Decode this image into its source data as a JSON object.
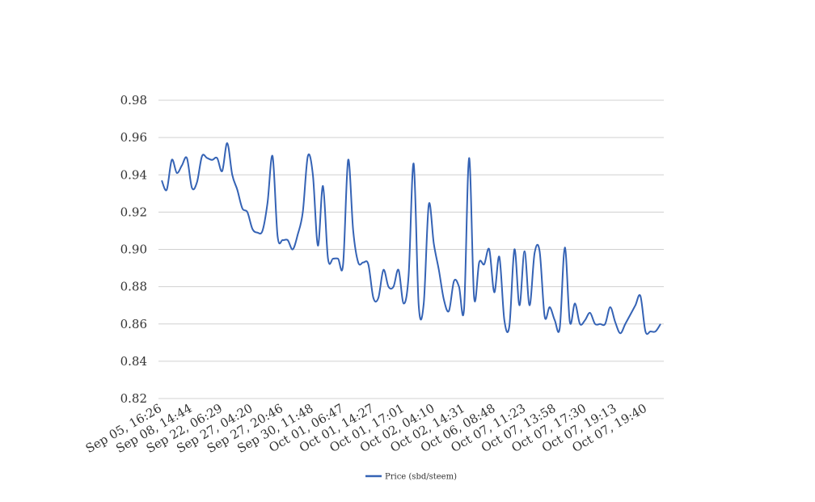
{
  "chart_data": {
    "type": "line",
    "title": "",
    "xlabel": "",
    "ylabel": "",
    "ylim": [
      0.82,
      0.98
    ],
    "yticks": [
      "0.98",
      "0.96",
      "0.94",
      "0.92",
      "0.90",
      "0.88",
      "0.86",
      "0.84",
      "0.82"
    ],
    "xtick_labels": [
      "Sep 05, 16:26",
      "Sep 08, 14:44",
      "Sep 22, 06:29",
      "Sep 27, 04:20",
      "Sep 27, 20:46",
      "Sep 30, 11:48",
      "Oct 01, 06:47",
      "Oct 01, 14:27",
      "Oct 01, 17:01",
      "Oct 02, 04:10",
      "Oct 02, 14:31",
      "Oct 06, 08:48",
      "Oct 07, 11:23",
      "Oct 07, 13:58",
      "Oct 07, 17:30",
      "Oct 07, 19:13",
      "Oct 07, 19:40"
    ],
    "grid": true,
    "legend_position": "bottom-center",
    "series": [
      {
        "name": "Price (sbd/steem)",
        "color": "#3563b5",
        "values": [
          0.937,
          0.932,
          0.948,
          0.941,
          0.945,
          0.949,
          0.933,
          0.936,
          0.95,
          0.949,
          0.948,
          0.949,
          0.942,
          0.957,
          0.94,
          0.932,
          0.922,
          0.92,
          0.911,
          0.909,
          0.91,
          0.925,
          0.95,
          0.907,
          0.905,
          0.905,
          0.9,
          0.908,
          0.92,
          0.95,
          0.94,
          0.902,
          0.934,
          0.895,
          0.895,
          0.895,
          0.892,
          0.948,
          0.91,
          0.893,
          0.893,
          0.892,
          0.874,
          0.874,
          0.889,
          0.88,
          0.88,
          0.889,
          0.871,
          0.886,
          0.946,
          0.87,
          0.871,
          0.924,
          0.903,
          0.889,
          0.873,
          0.867,
          0.883,
          0.88,
          0.868,
          0.949,
          0.874,
          0.893,
          0.892,
          0.9,
          0.877,
          0.896,
          0.862,
          0.859,
          0.9,
          0.87,
          0.899,
          0.87,
          0.898,
          0.899,
          0.864,
          0.869,
          0.862,
          0.858,
          0.901,
          0.861,
          0.871,
          0.86,
          0.862,
          0.866,
          0.86,
          0.86,
          0.86,
          0.869,
          0.861,
          0.855,
          0.86,
          0.865,
          0.87,
          0.875,
          0.856,
          0.856,
          0.856,
          0.86
        ]
      }
    ]
  }
}
